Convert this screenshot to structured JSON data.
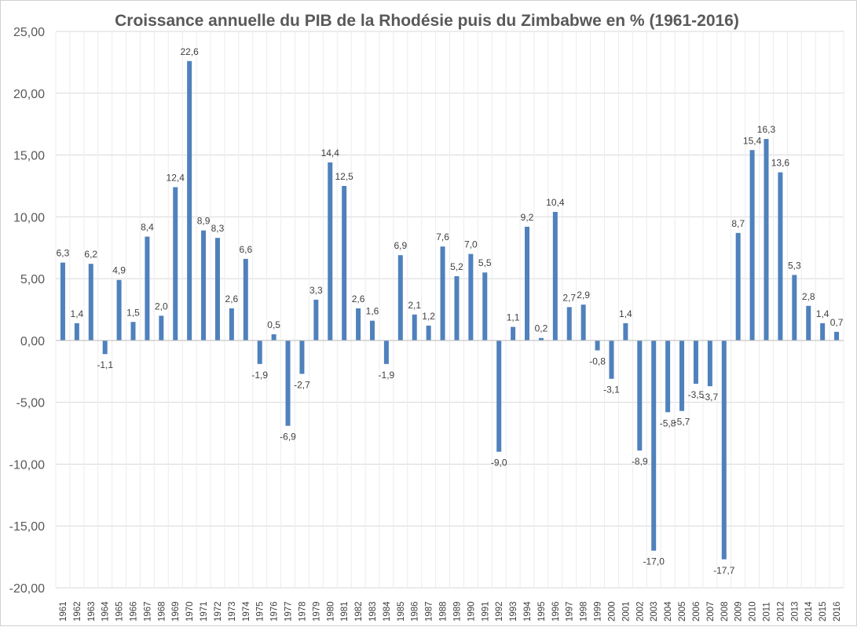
{
  "chart_data": {
    "type": "bar",
    "title": "Croissance annuelle du PIB de la Rhodésie puis du Zimbabwe en % (1961-2016)",
    "xlabel": "",
    "ylabel": "",
    "ylim": [
      -20,
      25
    ],
    "y_tick_labels": [
      "-20,00",
      "-15,00",
      "-10,00",
      "-5,00",
      "0,00",
      "5,00",
      "10,00",
      "15,00",
      "20,00",
      "25,00"
    ],
    "y_tick_values": [
      -20,
      -15,
      -10,
      -5,
      0,
      5,
      10,
      15,
      20,
      25
    ],
    "grid": true,
    "legend": "none",
    "bar_color": "#4f81bd",
    "categories": [
      "1961",
      "1962",
      "1963",
      "1964",
      "1965",
      "1966",
      "1967",
      "1968",
      "1969",
      "1970",
      "1971",
      "1972",
      "1973",
      "1974",
      "1975",
      "1976",
      "1977",
      "1978",
      "1979",
      "1980",
      "1981",
      "1982",
      "1983",
      "1984",
      "1985",
      "1986",
      "1987",
      "1988",
      "1989",
      "1990",
      "1991",
      "1992",
      "1993",
      "1994",
      "1995",
      "1996",
      "1997",
      "1998",
      "1999",
      "2000",
      "2001",
      "2002",
      "2003",
      "2004",
      "2005",
      "2006",
      "2007",
      "2008",
      "2009",
      "2010",
      "2011",
      "2012",
      "2013",
      "2014",
      "2015",
      "2016"
    ],
    "values": [
      6.3,
      1.4,
      6.2,
      -1.1,
      4.9,
      1.5,
      8.4,
      2.0,
      12.4,
      22.6,
      8.9,
      8.3,
      2.6,
      6.6,
      -1.9,
      0.5,
      -6.9,
      -2.7,
      3.3,
      14.4,
      12.5,
      2.6,
      1.6,
      -1.9,
      6.9,
      2.1,
      1.2,
      7.6,
      5.2,
      7.0,
      5.5,
      -9.0,
      1.1,
      9.2,
      0.2,
      10.4,
      2.7,
      2.9,
      -0.8,
      -3.1,
      1.4,
      -8.9,
      -17.0,
      -5.8,
      -5.7,
      -3.5,
      -3.7,
      -17.7,
      8.7,
      15.4,
      16.3,
      13.6,
      5.3,
      2.8,
      1.4,
      0.7
    ],
    "data_labels": [
      "6,3",
      "1,4",
      "6,2",
      "-1,1",
      "4,9",
      "1,5",
      "8,4",
      "2,0",
      "12,4",
      "22,6",
      "8,9",
      "8,3",
      "2,6",
      "6,6",
      "-1,9",
      "0,5",
      "-6,9",
      "-2,7",
      "3,3",
      "14,4",
      "12,5",
      "2,6",
      "1,6",
      "-1,9",
      "6,9",
      "2,1",
      "1,2",
      "7,6",
      "5,2",
      "7,0",
      "5,5",
      "-9,0",
      "1,1",
      "9,2",
      "0,2",
      "10,4",
      "2,7",
      "2,9",
      "-0,8",
      "-3,1",
      "1,4",
      "-8,9",
      "-17,0",
      "-5,8",
      "-5,7",
      "-3,5",
      "-3,7",
      "-17,7",
      "8,7",
      "15,4",
      "16,3",
      "13,6",
      "5,3",
      "2,8",
      "1,4",
      "0,7"
    ]
  }
}
